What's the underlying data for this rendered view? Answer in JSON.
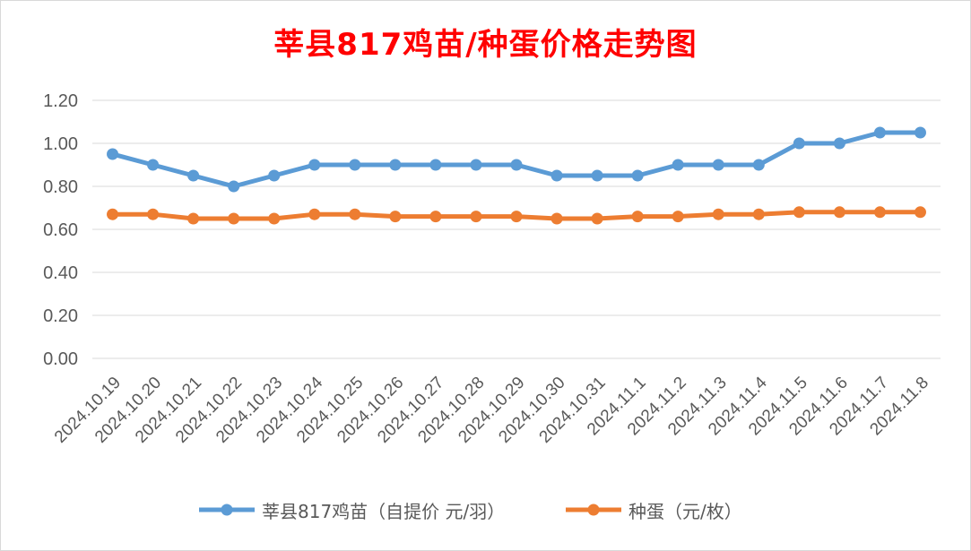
{
  "chart_data": {
    "type": "line",
    "title": "莘县817鸡苗/种蛋价格走势图",
    "categories": [
      "2024.10.19",
      "2024.10.20",
      "2024.10.21",
      "2024.10.22",
      "2024.10.23",
      "2024.10.24",
      "2024.10.25",
      "2024.10.26",
      "2024.10.27",
      "2024.10.28",
      "2024.10.29",
      "2024.10.30",
      "2024.10.31",
      "2024.11.1",
      "2024.11.2",
      "2024.11.3",
      "2024.11.4",
      "2024.11.5",
      "2024.11.6",
      "2024.11.7",
      "2024.11.8"
    ],
    "series": [
      {
        "name": "莘县817鸡苗（自提价 元/羽）",
        "color": "#5b9bd5",
        "values": [
          0.95,
          0.9,
          0.85,
          0.8,
          0.85,
          0.9,
          0.9,
          0.9,
          0.9,
          0.9,
          0.9,
          0.85,
          0.85,
          0.85,
          0.9,
          0.9,
          0.9,
          1.0,
          1.0,
          1.05,
          1.05
        ]
      },
      {
        "name": "种蛋（元/枚）",
        "color": "#ed7d31",
        "values": [
          0.67,
          0.67,
          0.65,
          0.65,
          0.65,
          0.67,
          0.67,
          0.66,
          0.66,
          0.66,
          0.66,
          0.65,
          0.65,
          0.66,
          0.66,
          0.67,
          0.67,
          0.68,
          0.68,
          0.68,
          0.68
        ]
      }
    ],
    "ylim": [
      0,
      1.2
    ],
    "yticks": [
      "0.00",
      "0.20",
      "0.40",
      "0.60",
      "0.80",
      "1.00",
      "1.20"
    ],
    "grid": true,
    "legend": "bottom"
  }
}
